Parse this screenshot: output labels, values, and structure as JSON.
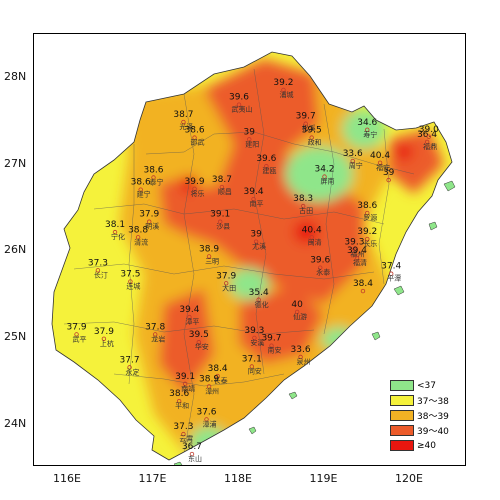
{
  "chart_data": {
    "type": "map",
    "x_ticks": [
      "116E",
      "117E",
      "118E",
      "119E",
      "120E"
    ],
    "y_ticks": [
      "28N",
      "27N",
      "26N",
      "25N",
      "24N"
    ],
    "legend": [
      {
        "label": "<37",
        "color": "#8fe68a"
      },
      {
        "label": "37～38",
        "color": "#f5f23b"
      },
      {
        "label": "38～39",
        "color": "#f2b224"
      },
      {
        "label": "39～40",
        "color": "#ec5b2a"
      },
      {
        "label": "≥40",
        "color": "#e8160f"
      }
    ],
    "points": [
      {
        "value": "39.6",
        "name": "武夷山",
        "lon": 118.0,
        "lat": 27.75
      },
      {
        "value": "39.2",
        "name": "浦城",
        "lon": 118.52,
        "lat": 27.92
      },
      {
        "value": "38.7",
        "name": "光泽",
        "lon": 117.35,
        "lat": 27.55
      },
      {
        "value": "38.6",
        "name": "邵武",
        "lon": 117.48,
        "lat": 27.37
      },
      {
        "value": "39",
        "name": "建阳",
        "lon": 118.12,
        "lat": 27.35
      },
      {
        "value": "39.7",
        "name": "松溪",
        "lon": 118.78,
        "lat": 27.53
      },
      {
        "value": "39.5",
        "name": "政和",
        "lon": 118.85,
        "lat": 27.37
      },
      {
        "value": "34.6",
        "name": "寿宁",
        "lon": 119.5,
        "lat": 27.46
      },
      {
        "value": "36.4",
        "name": "福鼎",
        "lon": 120.2,
        "lat": 27.32
      },
      {
        "value": "39.0",
        "name": "",
        "lon": 120.22,
        "lat": 27.38
      },
      {
        "value": "33.6",
        "name": "周宁",
        "lon": 119.33,
        "lat": 27.1
      },
      {
        "value": "40.4",
        "name": "福安",
        "lon": 119.65,
        "lat": 27.08
      },
      {
        "value": "39.6",
        "name": "建瓯",
        "lon": 118.32,
        "lat": 27.04
      },
      {
        "value": "34.2",
        "name": "屏南",
        "lon": 119.0,
        "lat": 26.92
      },
      {
        "value": "39",
        "name": "",
        "lon": 119.75,
        "lat": 26.88
      },
      {
        "value": "38.6",
        "name": "泰宁",
        "lon": 117.0,
        "lat": 26.91
      },
      {
        "value": "38.6",
        "name": "建宁",
        "lon": 116.85,
        "lat": 26.77
      },
      {
        "value": "39.9",
        "name": "将乐",
        "lon": 117.48,
        "lat": 26.78
      },
      {
        "value": "38.7",
        "name": "顺昌",
        "lon": 117.8,
        "lat": 26.8
      },
      {
        "value": "39.4",
        "name": "南平",
        "lon": 118.17,
        "lat": 26.66
      },
      {
        "value": "38.3",
        "name": "古田",
        "lon": 118.75,
        "lat": 26.58
      },
      {
        "value": "38.6",
        "name": "罗源",
        "lon": 119.5,
        "lat": 26.5
      },
      {
        "value": "37.9",
        "name": "明溪",
        "lon": 116.95,
        "lat": 26.4
      },
      {
        "value": "38.8",
        "name": "清流",
        "lon": 116.82,
        "lat": 26.22
      },
      {
        "value": "38.1",
        "name": "宁化",
        "lon": 116.55,
        "lat": 26.28
      },
      {
        "value": "39.1",
        "name": "沙县",
        "lon": 117.78,
        "lat": 26.4
      },
      {
        "value": "39",
        "name": "尤溪",
        "lon": 118.2,
        "lat": 26.17
      },
      {
        "value": "40.4",
        "name": "闽清",
        "lon": 118.85,
        "lat": 26.22
      },
      {
        "value": "39.3",
        "name": "福州",
        "lon": 119.35,
        "lat": 26.08
      },
      {
        "value": "39.2",
        "name": "长乐",
        "lon": 119.5,
        "lat": 26.2
      },
      {
        "value": "38.9",
        "name": "三明",
        "lon": 117.65,
        "lat": 26.0
      },
      {
        "value": "39.4",
        "name": "福清",
        "lon": 119.38,
        "lat": 25.98
      },
      {
        "value": "39.6",
        "name": "永泰",
        "lon": 118.95,
        "lat": 25.87
      },
      {
        "value": "37.3",
        "name": "长汀",
        "lon": 116.35,
        "lat": 25.84
      },
      {
        "value": "37.5",
        "name": "连城",
        "lon": 116.73,
        "lat": 25.71
      },
      {
        "value": "37.4",
        "name": "平潭",
        "lon": 119.78,
        "lat": 25.8
      },
      {
        "value": "37.9",
        "name": "大田",
        "lon": 117.85,
        "lat": 25.69
      },
      {
        "value": "38.4",
        "name": "",
        "lon": 119.45,
        "lat": 25.6
      },
      {
        "value": "35.4",
        "name": "德化",
        "lon": 118.23,
        "lat": 25.5
      },
      {
        "value": "40",
        "name": "仙游",
        "lon": 118.68,
        "lat": 25.36
      },
      {
        "value": "39.4",
        "name": "漳平",
        "lon": 117.42,
        "lat": 25.3
      },
      {
        "value": "37.9",
        "name": "武平",
        "lon": 116.1,
        "lat": 25.1
      },
      {
        "value": "37.9",
        "name": "上杭",
        "lon": 116.42,
        "lat": 25.05
      },
      {
        "value": "37.8",
        "name": "龙岩",
        "lon": 117.02,
        "lat": 25.1
      },
      {
        "value": "39.5",
        "name": "华安",
        "lon": 117.53,
        "lat": 25.01
      },
      {
        "value": "39.3",
        "name": "安溪",
        "lon": 118.18,
        "lat": 25.06
      },
      {
        "value": "39.7",
        "name": "南安",
        "lon": 118.38,
        "lat": 24.97
      },
      {
        "value": "33.6",
        "name": "泉州",
        "lon": 118.72,
        "lat": 24.84
      },
      {
        "value": "37.7",
        "name": "永定",
        "lon": 116.72,
        "lat": 24.72
      },
      {
        "value": "37.1",
        "name": "同安",
        "lon": 118.15,
        "lat": 24.73
      },
      {
        "value": "38.4",
        "name": "长泰",
        "lon": 117.75,
        "lat": 24.62
      },
      {
        "value": "39.1",
        "name": "南靖",
        "lon": 117.37,
        "lat": 24.53
      },
      {
        "value": "38.9",
        "name": "漳州",
        "lon": 117.65,
        "lat": 24.5
      },
      {
        "value": "38.6",
        "name": "平和",
        "lon": 117.3,
        "lat": 24.33
      },
      {
        "value": "37.6",
        "name": "漳浦",
        "lon": 117.62,
        "lat": 24.12
      },
      {
        "value": "37.3",
        "name": "云霄",
        "lon": 117.35,
        "lat": 23.95
      },
      {
        "value": "36.7",
        "name": "东山",
        "lon": 117.45,
        "lat": 23.72
      }
    ]
  }
}
